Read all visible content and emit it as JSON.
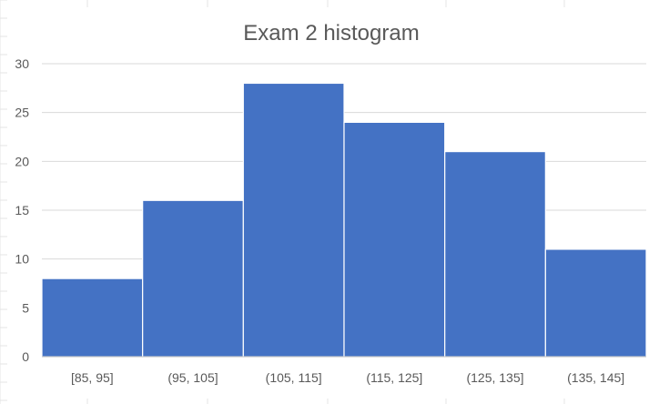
{
  "chart_data": {
    "type": "bar",
    "title": "Exam 2 histogram",
    "xlabel": "",
    "ylabel": "",
    "categories": [
      "[85, 95]",
      "(95, 105]",
      "(105, 115]",
      "(115, 125]",
      "(125, 135]",
      "(135, 145]"
    ],
    "values": [
      8,
      16,
      28,
      24,
      21,
      11
    ],
    "ylim": [
      0,
      30
    ],
    "yticks": [
      0,
      5,
      10,
      15,
      20,
      25,
      30
    ],
    "grid": true,
    "legend": "none",
    "bar_color": "#4472C4",
    "gridline_color": "#D9D9D9",
    "background_grid_color": "#E4E4E4"
  }
}
